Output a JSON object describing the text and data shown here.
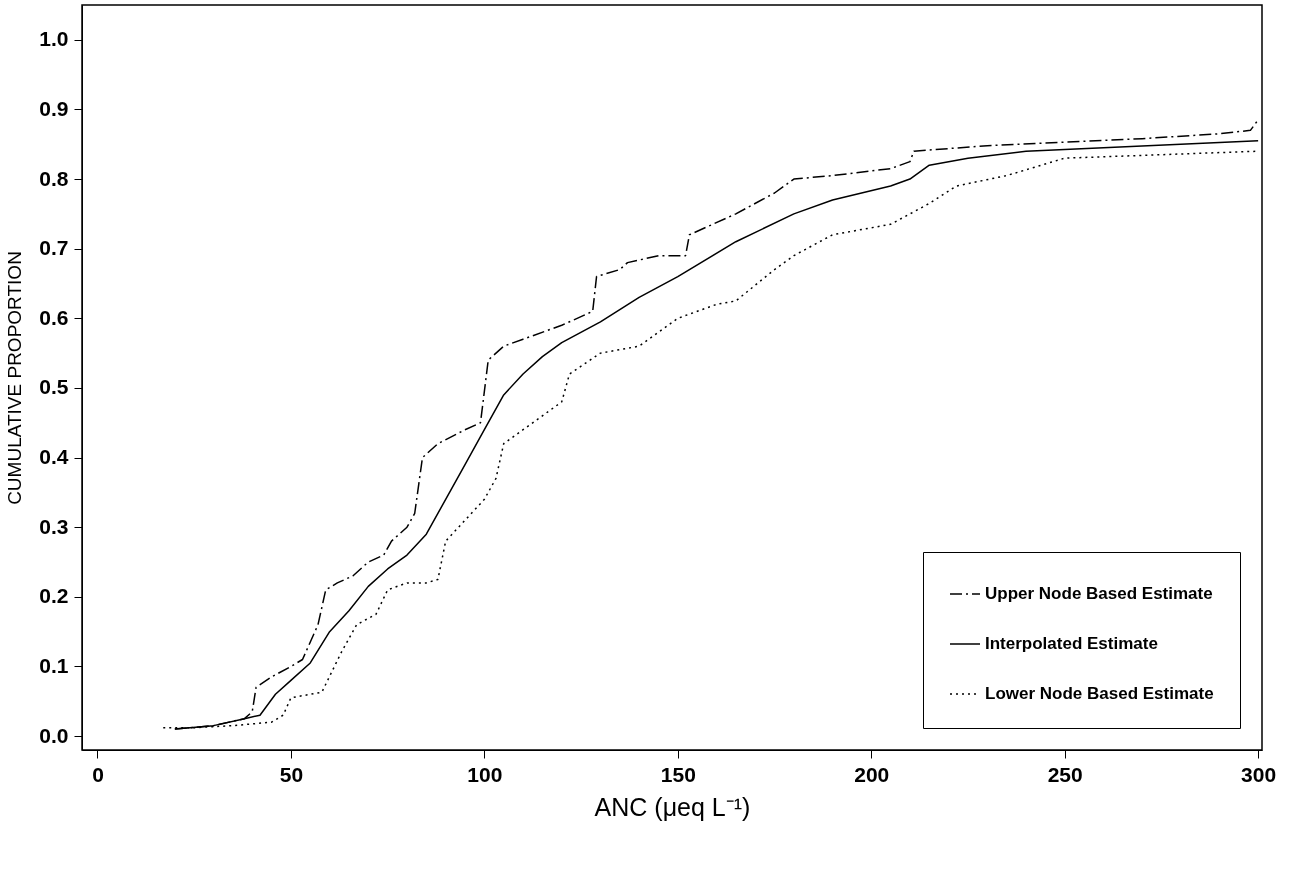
{
  "chart_data": {
    "type": "line",
    "xlabel": "ANC (μeq L⁻¹)",
    "ylabel": "CUMULATIVE PROPORTION",
    "xlim": [
      -4,
      301
    ],
    "ylim": [
      -0.02,
      1.05
    ],
    "xticks": [
      0,
      50,
      100,
      150,
      200,
      250,
      300
    ],
    "yticks": [
      {
        "value": 0,
        "label": "0.0"
      },
      0.1,
      0.2,
      0.3,
      0.4,
      0.5,
      0.6,
      0.7,
      0.8,
      0.9,
      {
        "value": 1,
        "label": "1.0"
      }
    ],
    "grid": false,
    "legend": "bottom right",
    "marker": "none",
    "series": [
      {
        "name": "Upper Node Based Estimate",
        "color": "#000000",
        "line_style": "dashdot",
        "x": [
          20,
          30,
          38,
          40,
          41,
          45,
          50,
          53,
          57,
          59,
          62,
          66,
          70,
          74,
          76,
          80,
          82,
          84,
          88,
          95,
          99,
          101,
          105,
          110,
          120,
          128,
          129,
          135,
          137,
          145,
          152,
          153,
          165,
          175,
          180,
          190,
          205,
          210,
          211,
          230,
          250,
          270,
          290,
          298,
          300
        ],
        "values": [
          0.01,
          0.015,
          0.025,
          0.035,
          0.07,
          0.085,
          0.1,
          0.11,
          0.16,
          0.21,
          0.22,
          0.23,
          0.25,
          0.26,
          0.28,
          0.3,
          0.32,
          0.4,
          0.42,
          0.44,
          0.45,
          0.54,
          0.56,
          0.57,
          0.59,
          0.61,
          0.66,
          0.67,
          0.68,
          0.69,
          0.69,
          0.72,
          0.75,
          0.78,
          0.8,
          0.805,
          0.815,
          0.825,
          0.84,
          0.848,
          0.853,
          0.858,
          0.865,
          0.87,
          0.885
        ]
      },
      {
        "name": "Interpolated Estimate",
        "color": "#000000",
        "line_style": "solid",
        "x": [
          20,
          30,
          38,
          42,
          46,
          50,
          55,
          60,
          65,
          70,
          75,
          80,
          85,
          90,
          95,
          100,
          105,
          110,
          115,
          120,
          130,
          140,
          150,
          165,
          180,
          190,
          205,
          210,
          215,
          225,
          240,
          260,
          280,
          300
        ],
        "values": [
          0.01,
          0.015,
          0.025,
          0.03,
          0.06,
          0.08,
          0.105,
          0.15,
          0.18,
          0.215,
          0.24,
          0.26,
          0.29,
          0.34,
          0.39,
          0.44,
          0.49,
          0.52,
          0.545,
          0.565,
          0.595,
          0.63,
          0.66,
          0.71,
          0.75,
          0.77,
          0.79,
          0.8,
          0.82,
          0.83,
          0.84,
          0.845,
          0.85,
          0.855
        ]
      },
      {
        "name": "Lower Node Based Estimate",
        "color": "#000000",
        "line_style": "dotted",
        "x": [
          17,
          25,
          35,
          45,
          48,
          50,
          55,
          58,
          63,
          67,
          72,
          75,
          80,
          85,
          88,
          90,
          95,
          100,
          103,
          105,
          110,
          120,
          122,
          130,
          140,
          150,
          160,
          165,
          175,
          180,
          190,
          205,
          210,
          215,
          222,
          235,
          250,
          275,
          300
        ],
        "values": [
          0.012,
          0.012,
          0.015,
          0.02,
          0.03,
          0.055,
          0.06,
          0.063,
          0.12,
          0.16,
          0.175,
          0.21,
          0.22,
          0.22,
          0.225,
          0.28,
          0.31,
          0.34,
          0.37,
          0.42,
          0.44,
          0.48,
          0.52,
          0.55,
          0.56,
          0.6,
          0.62,
          0.625,
          0.67,
          0.69,
          0.72,
          0.735,
          0.75,
          0.765,
          0.79,
          0.805,
          0.83,
          0.835,
          0.84
        ]
      }
    ]
  }
}
